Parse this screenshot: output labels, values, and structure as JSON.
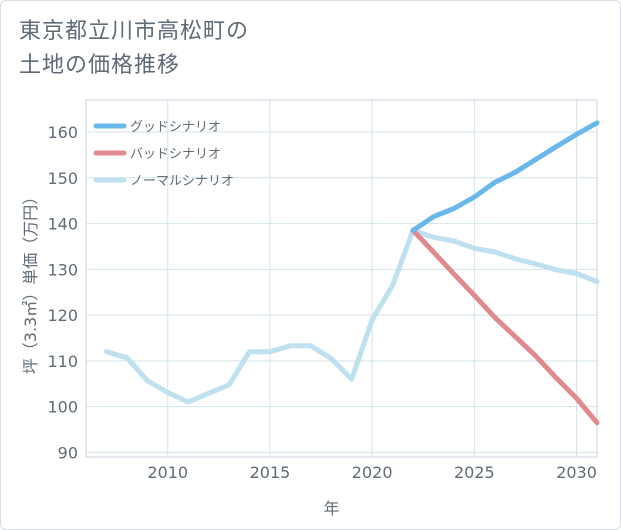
{
  "title": {
    "line1": "東京都立川市高松町の",
    "line2": "土地の価格推移"
  },
  "chart_data": {
    "type": "line",
    "title": "東京都立川市高松町の土地の価格推移",
    "xlabel": "年",
    "ylabel": "坪（3.3㎡）単価（万円）",
    "xlim": [
      2006,
      2031
    ],
    "ylim": [
      89,
      167
    ],
    "x_ticks": [
      2010,
      2015,
      2020,
      2025,
      2030
    ],
    "y_ticks": [
      90,
      100,
      110,
      120,
      130,
      140,
      150,
      160
    ],
    "grid": true,
    "legend_position": "top-left",
    "series": [
      {
        "name": "グッドシナリオ",
        "color": "#6ab7ea",
        "x": [
          2022,
          2023,
          2024,
          2025,
          2026,
          2027,
          2028,
          2029,
          2030,
          2031
        ],
        "values": [
          138.5,
          141.5,
          143.3,
          145.8,
          149.0,
          151.2,
          154.0,
          156.8,
          159.5,
          162.0
        ]
      },
      {
        "name": "バッドシナリオ",
        "color": "#df8a8f",
        "x": [
          2022,
          2023,
          2024,
          2025,
          2026,
          2027,
          2028,
          2029,
          2030,
          2031
        ],
        "values": [
          138.5,
          133.8,
          129.0,
          124.3,
          119.5,
          115.3,
          111.1,
          106.3,
          101.8,
          96.5
        ]
      },
      {
        "name": "ノーマルシナリオ",
        "color": "#bee0ef",
        "x": [
          2007,
          2008,
          2009,
          2010,
          2011,
          2012,
          2013,
          2014,
          2015,
          2016,
          2017,
          2018,
          2019,
          2020,
          2021,
          2022,
          2023,
          2024,
          2025,
          2026,
          2027,
          2028,
          2029,
          2030,
          2031
        ],
        "values": [
          112.0,
          110.7,
          105.7,
          103.1,
          101.0,
          102.9,
          104.8,
          112.0,
          112.0,
          113.3,
          113.3,
          110.5,
          106.0,
          119.0,
          126.5,
          138.5,
          137.0,
          136.2,
          134.6,
          133.8,
          132.3,
          131.2,
          129.9,
          129.1,
          127.3
        ]
      }
    ]
  }
}
